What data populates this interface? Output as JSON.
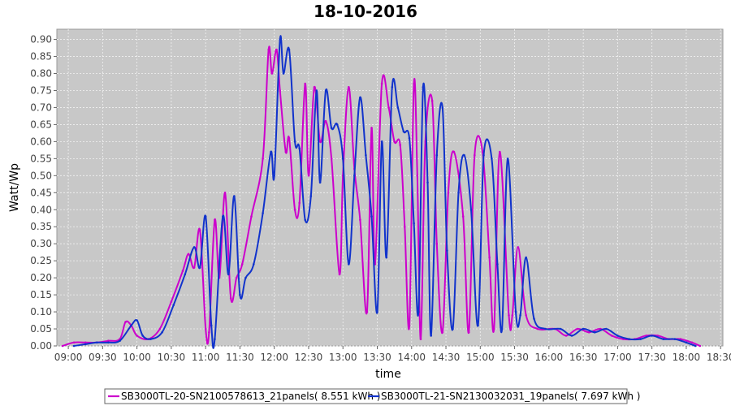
{
  "chart_data": {
    "type": "line",
    "title": "18-10-2016",
    "xlabel": "time",
    "ylabel": "Watt/Wp",
    "x_ticks": [
      "09:00",
      "09:30",
      "10:00",
      "10:30",
      "11:00",
      "11:30",
      "12:00",
      "12:30",
      "13:00",
      "13:30",
      "14:00",
      "14:30",
      "15:00",
      "15:30",
      "16:00",
      "16:30",
      "17:00",
      "17:30",
      "18:00",
      "18:30"
    ],
    "y_ticks": [
      "0.00",
      "0.05",
      "0.10",
      "0.15",
      "0.20",
      "0.25",
      "0.30",
      "0.35",
      "0.40",
      "0.45",
      "0.50",
      "0.55",
      "0.60",
      "0.65",
      "0.70",
      "0.75",
      "0.80",
      "0.85",
      "0.90"
    ],
    "xlim": [
      "08:50",
      "18:32"
    ],
    "ylim": [
      0,
      0.93
    ],
    "grid": true,
    "background": "#c8c8c8",
    "legend_position": "bottom",
    "series": [
      {
        "name": "SB3000TL-20-SN2100578613_21panels( 8.551 kWh )",
        "color": "#cc00cc",
        "points": [
          [
            "08:55",
            0.0
          ],
          [
            "09:05",
            0.01
          ],
          [
            "09:15",
            0.01
          ],
          [
            "09:25",
            0.01
          ],
          [
            "09:35",
            0.015
          ],
          [
            "09:45",
            0.02
          ],
          [
            "09:50",
            0.07
          ],
          [
            "09:55",
            0.06
          ],
          [
            "10:00",
            0.03
          ],
          [
            "10:10",
            0.02
          ],
          [
            "10:20",
            0.05
          ],
          [
            "10:30",
            0.13
          ],
          [
            "10:40",
            0.22
          ],
          [
            "10:45",
            0.27
          ],
          [
            "10:50",
            0.23
          ],
          [
            "10:55",
            0.34
          ],
          [
            "11:00",
            0.05
          ],
          [
            "11:03",
            0.04
          ],
          [
            "11:08",
            0.37
          ],
          [
            "11:12",
            0.2
          ],
          [
            "11:17",
            0.45
          ],
          [
            "11:22",
            0.14
          ],
          [
            "11:27",
            0.2
          ],
          [
            "11:32",
            0.24
          ],
          [
            "11:40",
            0.38
          ],
          [
            "11:50",
            0.55
          ],
          [
            "11:55",
            0.87
          ],
          [
            "11:58",
            0.8
          ],
          [
            "12:02",
            0.87
          ],
          [
            "12:05",
            0.75
          ],
          [
            "12:10",
            0.57
          ],
          [
            "12:13",
            0.61
          ],
          [
            "12:18",
            0.4
          ],
          [
            "12:22",
            0.42
          ],
          [
            "12:27",
            0.77
          ],
          [
            "12:30",
            0.5
          ],
          [
            "12:35",
            0.76
          ],
          [
            "12:40",
            0.6
          ],
          [
            "12:45",
            0.66
          ],
          [
            "12:50",
            0.55
          ],
          [
            "12:57",
            0.21
          ],
          [
            "13:00",
            0.5
          ],
          [
            "13:05",
            0.76
          ],
          [
            "13:10",
            0.52
          ],
          [
            "13:15",
            0.37
          ],
          [
            "13:21",
            0.1
          ],
          [
            "13:25",
            0.64
          ],
          [
            "13:28",
            0.24
          ],
          [
            "13:34",
            0.77
          ],
          [
            "13:40",
            0.7
          ],
          [
            "13:45",
            0.6
          ],
          [
            "13:50",
            0.59
          ],
          [
            "13:54",
            0.35
          ],
          [
            "13:58",
            0.06
          ],
          [
            "14:02",
            0.77
          ],
          [
            "14:05",
            0.5
          ],
          [
            "14:08",
            0.02
          ],
          [
            "14:12",
            0.6
          ],
          [
            "14:18",
            0.72
          ],
          [
            "14:22",
            0.3
          ],
          [
            "14:27",
            0.04
          ],
          [
            "14:32",
            0.45
          ],
          [
            "14:37",
            0.57
          ],
          [
            "14:45",
            0.38
          ],
          [
            "14:50",
            0.04
          ],
          [
            "14:55",
            0.56
          ],
          [
            "15:02",
            0.57
          ],
          [
            "15:08",
            0.26
          ],
          [
            "15:12",
            0.05
          ],
          [
            "15:17",
            0.57
          ],
          [
            "15:25",
            0.09
          ],
          [
            "15:28",
            0.09
          ],
          [
            "15:33",
            0.29
          ],
          [
            "15:40",
            0.09
          ],
          [
            "15:50",
            0.05
          ],
          [
            "16:05",
            0.05
          ],
          [
            "16:15",
            0.03
          ],
          [
            "16:25",
            0.05
          ],
          [
            "16:35",
            0.04
          ],
          [
            "16:45",
            0.05
          ],
          [
            "16:55",
            0.03
          ],
          [
            "17:05",
            0.02
          ],
          [
            "17:15",
            0.02
          ],
          [
            "17:25",
            0.03
          ],
          [
            "17:35",
            0.03
          ],
          [
            "17:45",
            0.02
          ],
          [
            "17:55",
            0.02
          ],
          [
            "18:05",
            0.01
          ],
          [
            "18:12",
            0.0
          ]
        ]
      },
      {
        "name": "SB3000TL-21-SN2130032031_19panels( 7.697 kWh )",
        "color": "#1133cc",
        "points": [
          [
            "09:05",
            0.0
          ],
          [
            "09:15",
            0.005
          ],
          [
            "09:25",
            0.01
          ],
          [
            "09:35",
            0.01
          ],
          [
            "09:45",
            0.015
          ],
          [
            "09:55",
            0.06
          ],
          [
            "10:00",
            0.075
          ],
          [
            "10:05",
            0.03
          ],
          [
            "10:12",
            0.02
          ],
          [
            "10:22",
            0.04
          ],
          [
            "10:32",
            0.12
          ],
          [
            "10:42",
            0.21
          ],
          [
            "10:50",
            0.29
          ],
          [
            "10:55",
            0.23
          ],
          [
            "11:00",
            0.38
          ],
          [
            "11:05",
            0.06
          ],
          [
            "11:08",
            0.02
          ],
          [
            "11:15",
            0.38
          ],
          [
            "11:20",
            0.21
          ],
          [
            "11:25",
            0.44
          ],
          [
            "11:30",
            0.15
          ],
          [
            "11:35",
            0.2
          ],
          [
            "11:42",
            0.24
          ],
          [
            "11:50",
            0.39
          ],
          [
            "11:57",
            0.57
          ],
          [
            "12:00",
            0.5
          ],
          [
            "12:05",
            0.9
          ],
          [
            "12:08",
            0.8
          ],
          [
            "12:13",
            0.87
          ],
          [
            "12:18",
            0.6
          ],
          [
            "12:22",
            0.58
          ],
          [
            "12:27",
            0.37
          ],
          [
            "12:32",
            0.44
          ],
          [
            "12:37",
            0.75
          ],
          [
            "12:40",
            0.48
          ],
          [
            "12:45",
            0.75
          ],
          [
            "12:50",
            0.64
          ],
          [
            "12:55",
            0.65
          ],
          [
            "13:00",
            0.55
          ],
          [
            "13:05",
            0.24
          ],
          [
            "13:10",
            0.5
          ],
          [
            "13:15",
            0.73
          ],
          [
            "13:20",
            0.56
          ],
          [
            "13:25",
            0.38
          ],
          [
            "13:30",
            0.1
          ],
          [
            "13:34",
            0.6
          ],
          [
            "13:38",
            0.26
          ],
          [
            "13:43",
            0.76
          ],
          [
            "13:48",
            0.7
          ],
          [
            "13:53",
            0.63
          ],
          [
            "13:58",
            0.61
          ],
          [
            "14:02",
            0.36
          ],
          [
            "14:06",
            0.1
          ],
          [
            "14:10",
            0.76
          ],
          [
            "14:14",
            0.48
          ],
          [
            "14:17",
            0.03
          ],
          [
            "14:22",
            0.56
          ],
          [
            "14:27",
            0.7
          ],
          [
            "14:31",
            0.28
          ],
          [
            "14:36",
            0.05
          ],
          [
            "14:41",
            0.45
          ],
          [
            "14:46",
            0.56
          ],
          [
            "14:52",
            0.4
          ],
          [
            "14:58",
            0.06
          ],
          [
            "15:03",
            0.56
          ],
          [
            "15:10",
            0.55
          ],
          [
            "15:15",
            0.24
          ],
          [
            "15:19",
            0.05
          ],
          [
            "15:24",
            0.55
          ],
          [
            "15:31",
            0.1
          ],
          [
            "15:35",
            0.09
          ],
          [
            "15:40",
            0.26
          ],
          [
            "15:47",
            0.08
          ],
          [
            "15:57",
            0.05
          ],
          [
            "16:10",
            0.05
          ],
          [
            "16:20",
            0.03
          ],
          [
            "16:30",
            0.05
          ],
          [
            "16:40",
            0.04
          ],
          [
            "16:50",
            0.05
          ],
          [
            "17:00",
            0.03
          ],
          [
            "17:10",
            0.02
          ],
          [
            "17:20",
            0.02
          ],
          [
            "17:30",
            0.03
          ],
          [
            "17:40",
            0.02
          ],
          [
            "17:50",
            0.02
          ],
          [
            "18:00",
            0.01
          ],
          [
            "18:08",
            0.0
          ]
        ]
      }
    ]
  }
}
